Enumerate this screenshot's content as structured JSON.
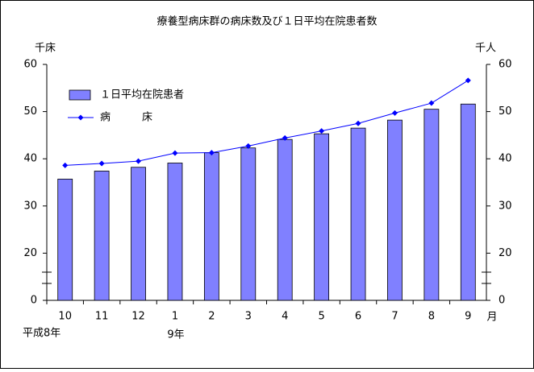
{
  "chart_data": {
    "type": "bar-line",
    "title": "療養型病床群の病床数及び１日平均在院患者数",
    "y_label": "千床",
    "y2_label": "千人",
    "categories": [
      "10",
      "11",
      "12",
      "1",
      "2",
      "3",
      "4",
      "5",
      "6",
      "7",
      "8",
      "9"
    ],
    "x_unit": "月",
    "annotations": [
      "平成8年",
      "9年"
    ],
    "ylim": [
      10,
      60
    ],
    "yticks": [
      {
        "value": 10,
        "label": "0"
      },
      20,
      30,
      40,
      50,
      60
    ],
    "y2lim": [
      10,
      60
    ],
    "y2ticks": [
      {
        "value": 10,
        "label": "0"
      },
      20,
      30,
      40,
      50,
      60
    ],
    "axis_break": true,
    "legend": "top-left",
    "series": [
      {
        "name": "１日平均在院患者",
        "type": "bar",
        "axis": "y2",
        "color": "#8080ff",
        "values": [
          35.7,
          37.4,
          38.2,
          39.1,
          41.3,
          42.3,
          44.1,
          45.3,
          46.5,
          48.2,
          50.5,
          51.6
        ]
      },
      {
        "name": "病　　　床",
        "type": "line",
        "color": "#0000ff",
        "values": [
          38.6,
          39.0,
          39.5,
          41.2,
          41.3,
          42.7,
          44.4,
          45.9,
          47.5,
          49.7,
          51.8,
          56.6
        ]
      }
    ]
  }
}
